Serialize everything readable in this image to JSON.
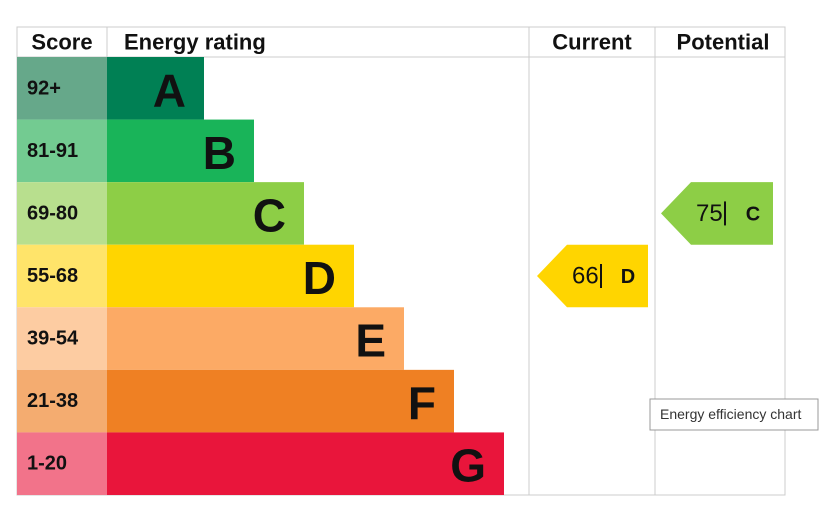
{
  "header": {
    "score": "Score",
    "energy_rating": "Energy rating",
    "current": "Current",
    "potential": "Potential"
  },
  "bands": [
    {
      "score": "92+",
      "rating": "A",
      "color": "#008054",
      "score_color": "#66a88a"
    },
    {
      "score": "81-91",
      "rating": "B",
      "color": "#19b459",
      "score_color": "#73cb91"
    },
    {
      "score": "69-80",
      "rating": "C",
      "color": "#8dce46",
      "score_color": "#b8df8e"
    },
    {
      "score": "55-68",
      "rating": "D",
      "color": "#ffd500",
      "score_color": "#ffe46a"
    },
    {
      "score": "39-54",
      "rating": "E",
      "color": "#fcaa65",
      "score_color": "#fdcca2"
    },
    {
      "score": "21-38",
      "rating": "F",
      "color": "#ef8023",
      "score_color": "#f4ac70"
    },
    {
      "score": "1-20",
      "rating": "G",
      "color": "#e9153b",
      "score_color": "#f2738a"
    }
  ],
  "current": {
    "value": 66,
    "rating": "D"
  },
  "potential": {
    "value": 75,
    "rating": "C"
  },
  "tooltip": "Energy efficiency chart"
}
